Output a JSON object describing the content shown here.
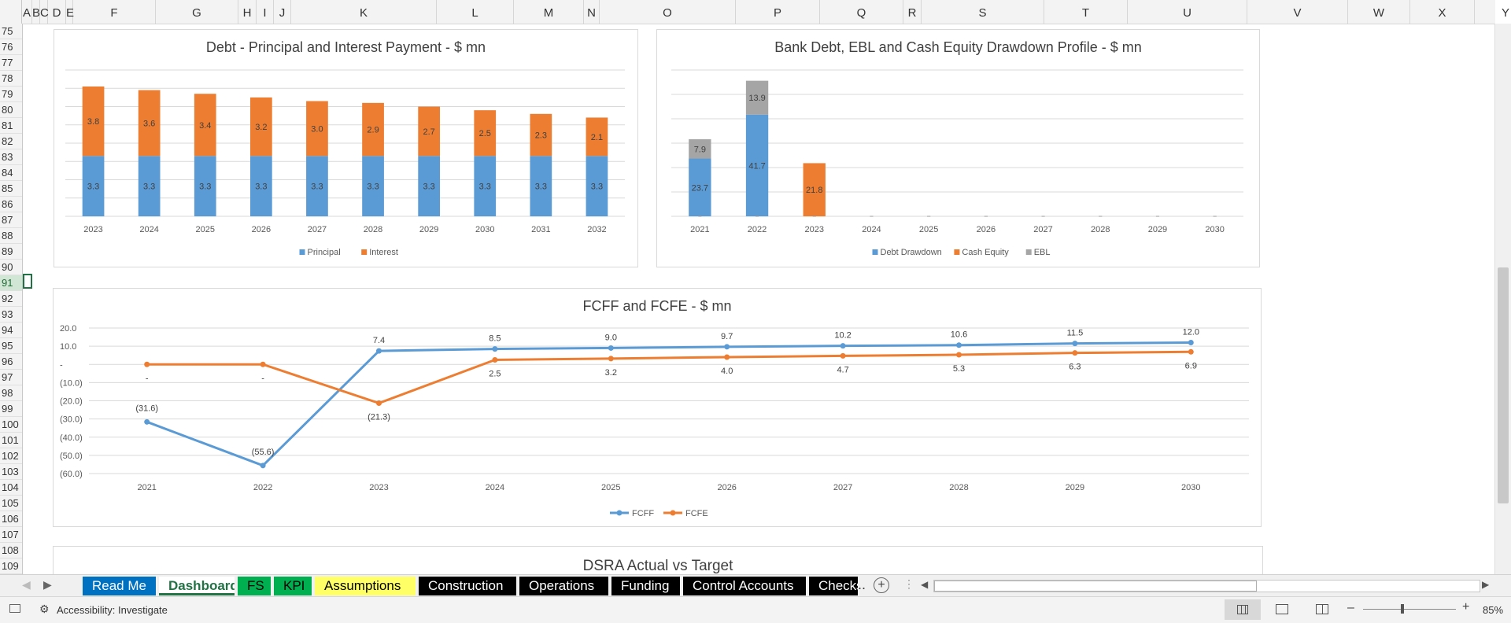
{
  "columns": [
    "A",
    "B",
    "C",
    "D",
    "E",
    "F",
    "G",
    "H",
    "I",
    "J",
    "K",
    "L",
    "M",
    "N",
    "O",
    "P",
    "Q",
    "R",
    "S",
    "T",
    "U",
    "V",
    "W",
    "X",
    "Y"
  ],
  "rows": [
    "75",
    "76",
    "77",
    "78",
    "79",
    "80",
    "81",
    "82",
    "83",
    "84",
    "85",
    "86",
    "87",
    "88",
    "89",
    "90",
    "91",
    "92",
    "93",
    "94",
    "95",
    "96",
    "97",
    "98",
    "99",
    "100",
    "101",
    "102",
    "103",
    "104",
    "105",
    "106",
    "107",
    "108",
    "109"
  ],
  "selected_row": "91",
  "chart_data": [
    {
      "type": "bar",
      "stacked": true,
      "title": "Debt - Principal and Interest Payment - $ mn",
      "categories": [
        "2023",
        "2024",
        "2025",
        "2026",
        "2027",
        "2028",
        "2029",
        "2030",
        "2031",
        "2032"
      ],
      "series": [
        {
          "name": "Principal",
          "color": "#5b9bd5",
          "values": [
            3.3,
            3.3,
            3.3,
            3.3,
            3.3,
            3.3,
            3.3,
            3.3,
            3.3,
            3.3
          ],
          "labels": [
            "3.3",
            "3.3",
            "3.3",
            "3.3",
            "3.3",
            "3.3",
            "3.3",
            "3.3",
            "3.3",
            "3.3"
          ]
        },
        {
          "name": "Interest",
          "color": "#ed7d31",
          "values": [
            3.8,
            3.6,
            3.4,
            3.2,
            3.0,
            2.9,
            2.7,
            2.5,
            2.3,
            2.1
          ],
          "labels": [
            "3.8",
            "3.6",
            "3.4",
            "3.2",
            "3.0",
            "2.9",
            "2.7",
            "2.5",
            "2.3",
            "2.1"
          ]
        }
      ],
      "legend": "bottom",
      "grid": true,
      "ylim": [
        0,
        8
      ]
    },
    {
      "type": "bar",
      "stacked": true,
      "title": "Bank Debt, EBL and Cash Equity Drawdown Profile - $ mn",
      "categories": [
        "2021",
        "2022",
        "2023",
        "2024",
        "2025",
        "2026",
        "2027",
        "2028",
        "2029",
        "2030"
      ],
      "series": [
        {
          "name": "Debt Drawdown",
          "color": "#5b9bd5",
          "values": [
            23.7,
            41.7,
            0,
            0,
            0,
            0,
            0,
            0,
            0,
            0
          ],
          "labels": [
            "23.7",
            "41.7",
            "",
            "",
            "",
            "",
            "",
            "",
            "",
            ""
          ]
        },
        {
          "name": "Cash Equity",
          "color": "#ed7d31",
          "values": [
            0,
            0,
            21.8,
            0,
            0,
            0,
            0,
            0,
            0,
            0
          ],
          "labels": [
            "",
            "",
            "21.8",
            "",
            "",
            "",
            "",
            "",
            "",
            ""
          ]
        },
        {
          "name": "EBL",
          "color": "#a5a5a5",
          "values": [
            7.9,
            13.9,
            0,
            0,
            0,
            0,
            0,
            0,
            0,
            0
          ],
          "labels": [
            "7.9",
            "13.9",
            "",
            "",
            "",
            "",
            "",
            "",
            "",
            ""
          ]
        }
      ],
      "legend": "bottom",
      "grid": true,
      "ylim": [
        0,
        60
      ]
    },
    {
      "type": "line",
      "title": "FCFF and FCFE - $ mn",
      "categories": [
        "2021",
        "2022",
        "2023",
        "2024",
        "2025",
        "2026",
        "2027",
        "2028",
        "2029",
        "2030"
      ],
      "yticks": [
        "20.0",
        "10.0",
        "-",
        "(10.0)",
        "(20.0)",
        "(30.0)",
        "(40.0)",
        "(50.0)",
        "(60.0)"
      ],
      "ylim": [
        -60,
        20
      ],
      "series": [
        {
          "name": "FCFF",
          "color": "#5b9bd5",
          "values": [
            -31.6,
            -55.6,
            7.4,
            8.5,
            9.0,
            9.7,
            10.2,
            10.6,
            11.5,
            12.0
          ],
          "labels": [
            "(31.6)",
            "(55.6)",
            "7.4",
            "8.5",
            "9.0",
            "9.7",
            "10.2",
            "10.6",
            "11.5",
            "12.0"
          ]
        },
        {
          "name": "FCFE",
          "color": "#ed7d31",
          "values": [
            0,
            0,
            -21.3,
            2.5,
            3.2,
            4.0,
            4.7,
            5.3,
            6.3,
            6.9
          ],
          "labels": [
            "-",
            "-",
            "(21.3)",
            "2.5",
            "3.2",
            "4.0",
            "4.7",
            "5.3",
            "6.3",
            "6.9"
          ]
        }
      ],
      "legend": "bottom",
      "grid": true
    },
    {
      "type": "bar",
      "title": "DSRA Actual vs Target"
    }
  ],
  "tabs": [
    {
      "label": "Read Me",
      "bg": "#0070c0",
      "fg": "#ffffff"
    },
    {
      "label": "Dashboard",
      "bg": "#ffffff",
      "fg": "#217346",
      "active": true
    },
    {
      "label": "FS",
      "bg": "#00b050",
      "fg": "#000000"
    },
    {
      "label": "KPI",
      "bg": "#00b050",
      "fg": "#000000"
    },
    {
      "label": "Assumptions",
      "bg": "#ffff66",
      "fg": "#000000"
    },
    {
      "label": "Construction",
      "bg": "#000000",
      "fg": "#ffffff"
    },
    {
      "label": "Operations",
      "bg": "#000000",
      "fg": "#ffffff"
    },
    {
      "label": "Funding",
      "bg": "#000000",
      "fg": "#ffffff"
    },
    {
      "label": "Control Accounts",
      "bg": "#000000",
      "fg": "#ffffff"
    },
    {
      "label": "Checks",
      "bg": "#000000",
      "fg": "#ffffff"
    }
  ],
  "tab_more": "...",
  "status": {
    "accessibility": "Accessibility: Investigate",
    "zoom": "85%"
  }
}
